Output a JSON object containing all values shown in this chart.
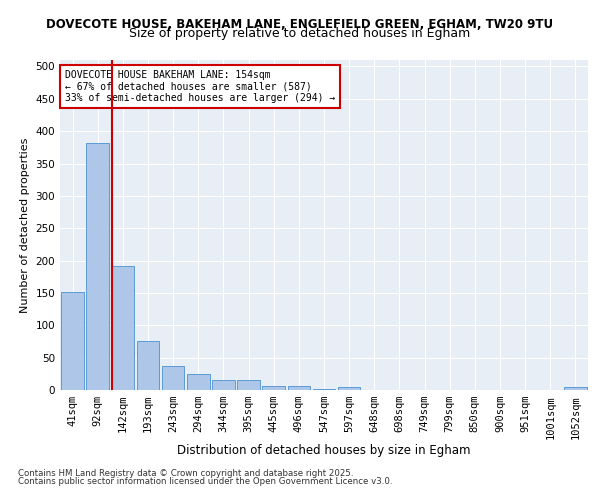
{
  "title1": "DOVECOTE HOUSE, BAKEHAM LANE, ENGLEFIELD GREEN, EGHAM, TW20 9TU",
  "title2": "Size of property relative to detached houses in Egham",
  "xlabel": "Distribution of detached houses by size in Egham",
  "ylabel": "Number of detached properties",
  "footer1": "Contains HM Land Registry data © Crown copyright and database right 2025.",
  "footer2": "Contains public sector information licensed under the Open Government Licence v3.0.",
  "categories": [
    "41sqm",
    "92sqm",
    "142sqm",
    "193sqm",
    "243sqm",
    "294sqm",
    "344sqm",
    "395sqm",
    "445sqm",
    "496sqm",
    "547sqm",
    "597sqm",
    "648sqm",
    "698sqm",
    "749sqm",
    "799sqm",
    "850sqm",
    "900sqm",
    "951sqm",
    "1001sqm",
    "1052sqm"
  ],
  "values": [
    151,
    381,
    191,
    76,
    37,
    25,
    15,
    15,
    6,
    6,
    1,
    4,
    0,
    0,
    0,
    0,
    0,
    0,
    0,
    0,
    5
  ],
  "bar_color": "#aec6e8",
  "bar_edge_color": "#5b9bd5",
  "vline_color": "#cc0000",
  "annotation_title": "DOVECOTE HOUSE BAKEHAM LANE: 154sqm",
  "annotation_line1": "← 67% of detached houses are smaller (587)",
  "annotation_line2": "33% of semi-detached houses are larger (294) →",
  "annotation_box_color": "#cc0000",
  "ylim": [
    0,
    510
  ],
  "yticks": [
    0,
    50,
    100,
    150,
    200,
    250,
    300,
    350,
    400,
    450,
    500
  ],
  "bg_color": "#e8eef5",
  "title1_fontsize": 8.5,
  "title2_fontsize": 9.0,
  "xlabel_fontsize": 8.5,
  "ylabel_fontsize": 8.0,
  "tick_fontsize": 7.5,
  "footer_fontsize": 6.2
}
